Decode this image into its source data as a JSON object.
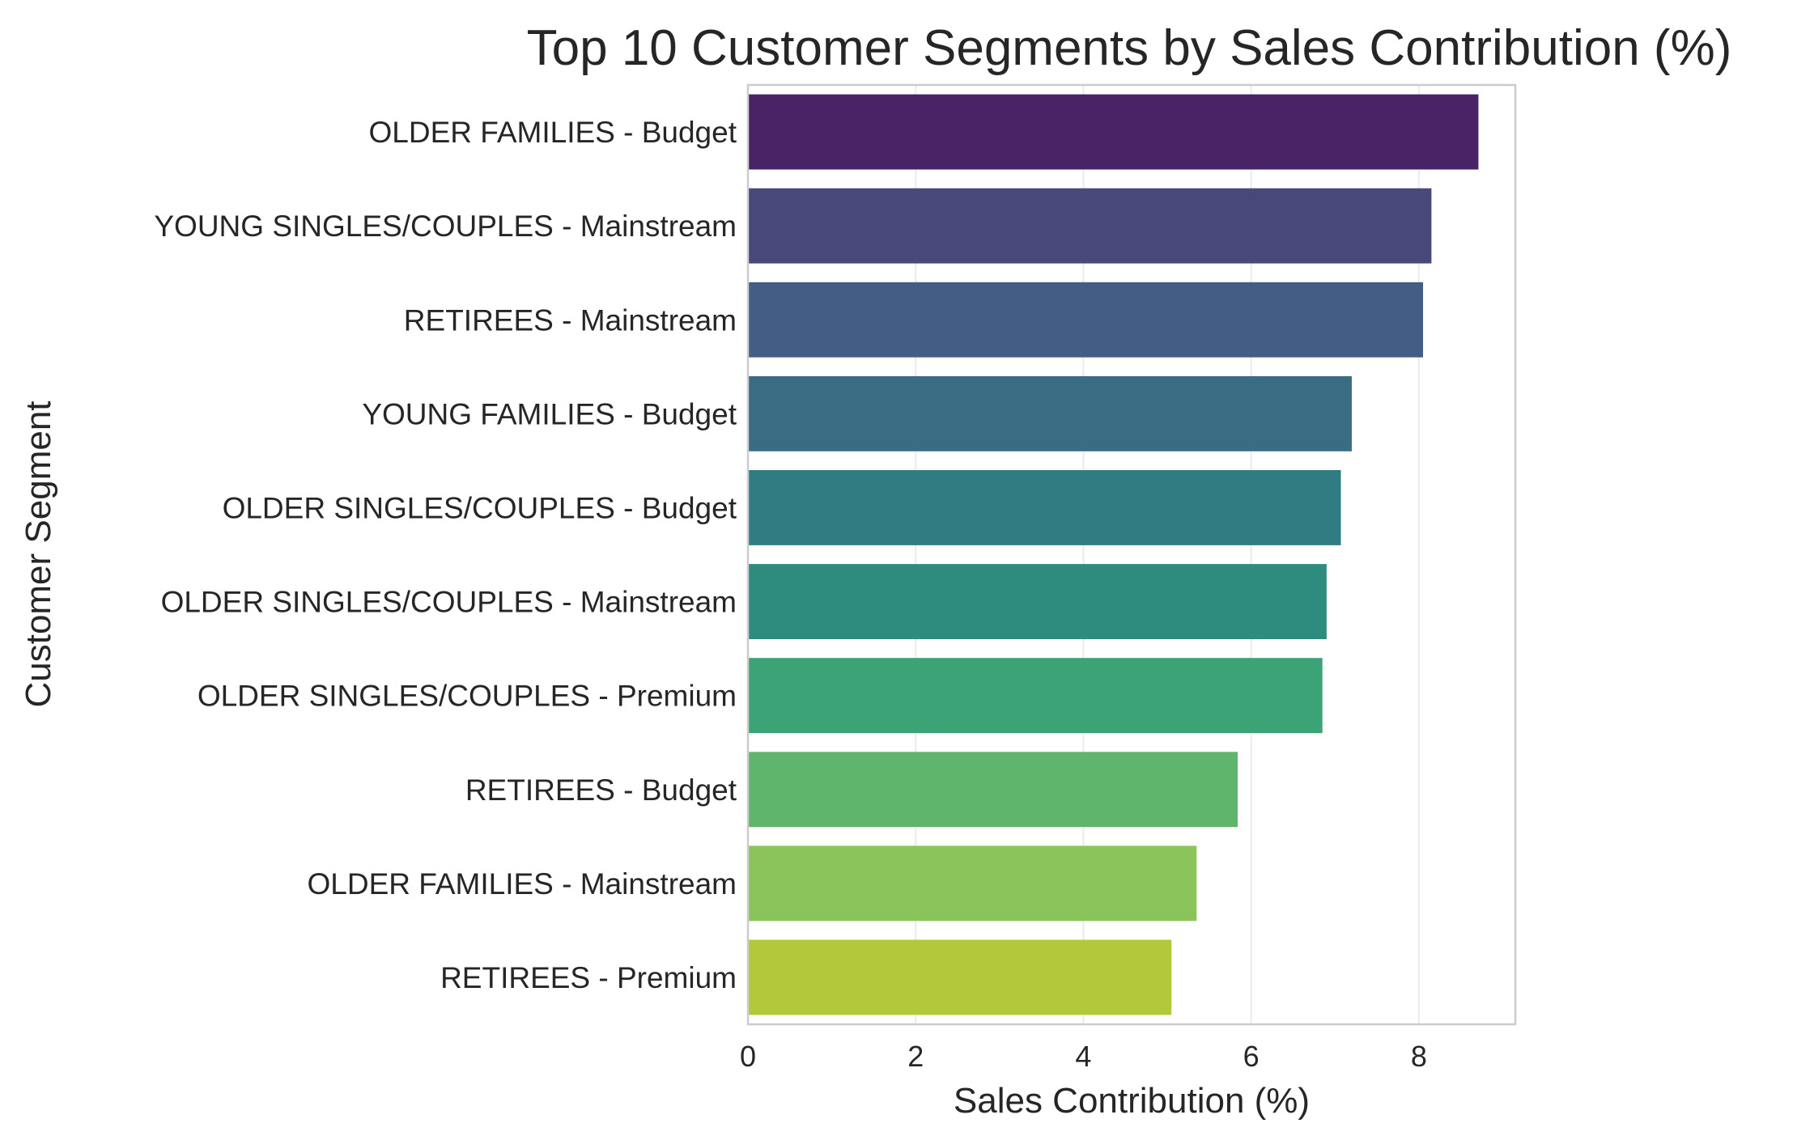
{
  "chart_data": {
    "type": "bar",
    "orientation": "horizontal",
    "title": "Top 10 Customer Segments by Sales Contribution (%)",
    "xlabel": "Sales Contribution (%)",
    "ylabel": "Customer Segment",
    "xlim": [
      0,
      9.15
    ],
    "xticks": [
      0,
      2,
      4,
      6,
      8
    ],
    "grid": true,
    "categories": [
      "OLDER FAMILIES - Budget",
      "YOUNG SINGLES/COUPLES - Mainstream",
      "RETIREES - Mainstream",
      "YOUNG FAMILIES - Budget",
      "OLDER SINGLES/COUPLES - Budget",
      "OLDER SINGLES/COUPLES - Mainstream",
      "OLDER SINGLES/COUPLES - Premium",
      "RETIREES - Budget",
      "OLDER FAMILIES - Mainstream",
      "RETIREES - Premium"
    ],
    "values": [
      8.71,
      8.15,
      8.05,
      7.2,
      7.07,
      6.9,
      6.85,
      5.84,
      5.35,
      5.05
    ],
    "colors": [
      "#482466",
      "#49487b",
      "#435d84",
      "#3a6c83",
      "#317c82",
      "#2e8c7f",
      "#3ca377",
      "#60b56d",
      "#8ac45b",
      "#b3c93a"
    ]
  }
}
